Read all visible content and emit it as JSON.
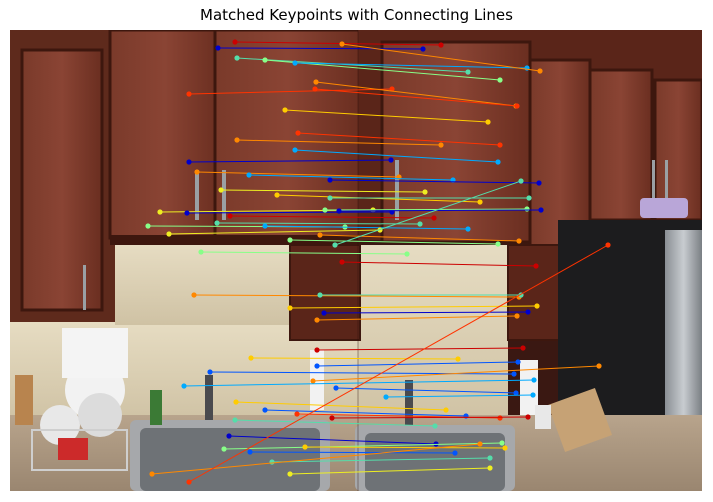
{
  "title": "Matched Keypoints with Connecting Lines",
  "image_description": "Side-by-side kitchen photos (dark wood cabinets, sink, faucets, dish rack) with colored keypoint markers connected by lines across the seam",
  "colors": {
    "background": "#ffffff",
    "match_palette": [
      "#cc0000",
      "#ff3300",
      "#ff8800",
      "#ffcc00",
      "#eeee22",
      "#88ff88",
      "#55ddaa",
      "#00aaff",
      "#0055ff",
      "#0000cc"
    ]
  },
  "matches": [
    {
      "a": [
        235,
        42
      ],
      "b": [
        441,
        45
      ],
      "c": "#cc0000"
    },
    {
      "a": [
        218,
        48
      ],
      "b": [
        423,
        49
      ],
      "c": "#0000cc"
    },
    {
      "a": [
        237,
        58
      ],
      "b": [
        468,
        72
      ],
      "c": "#55ddaa"
    },
    {
      "a": [
        265,
        60
      ],
      "b": [
        500,
        80
      ],
      "c": "#88ff88"
    },
    {
      "a": [
        295,
        63
      ],
      "b": [
        527,
        68
      ],
      "c": "#00aaff"
    },
    {
      "a": [
        342,
        44
      ],
      "b": [
        540,
        71
      ],
      "c": "#ff8800"
    },
    {
      "a": [
        189,
        94
      ],
      "b": [
        392,
        89
      ],
      "c": "#ff3300"
    },
    {
      "a": [
        316,
        82
      ],
      "b": [
        516,
        106
      ],
      "c": "#ff8800"
    },
    {
      "a": [
        315,
        89
      ],
      "b": [
        517,
        106
      ],
      "c": "#ff3300"
    },
    {
      "a": [
        285,
        110
      ],
      "b": [
        488,
        122
      ],
      "c": "#ffcc00"
    },
    {
      "a": [
        298,
        133
      ],
      "b": [
        500,
        145
      ],
      "c": "#ff3300"
    },
    {
      "a": [
        237,
        140
      ],
      "b": [
        441,
        145
      ],
      "c": "#ff8800"
    },
    {
      "a": [
        295,
        150
      ],
      "b": [
        498,
        162
      ],
      "c": "#00aaff"
    },
    {
      "a": [
        189,
        162
      ],
      "b": [
        391,
        160
      ],
      "c": "#0000cc"
    },
    {
      "a": [
        197,
        172
      ],
      "b": [
        399,
        177
      ],
      "c": "#ff8800"
    },
    {
      "a": [
        249,
        175
      ],
      "b": [
        453,
        180
      ],
      "c": "#00aaff"
    },
    {
      "a": [
        330,
        180
      ],
      "b": [
        539,
        183
      ],
      "c": "#0000cc"
    },
    {
      "a": [
        221,
        190
      ],
      "b": [
        425,
        192
      ],
      "c": "#eeee22"
    },
    {
      "a": [
        277,
        195
      ],
      "b": [
        480,
        202
      ],
      "c": "#ffcc00"
    },
    {
      "a": [
        330,
        198
      ],
      "b": [
        529,
        198
      ],
      "c": "#55ddaa"
    },
    {
      "a": [
        160,
        212
      ],
      "b": [
        373,
        210
      ],
      "c": "#eeee22"
    },
    {
      "a": [
        187,
        213
      ],
      "b": [
        392,
        212
      ],
      "c": "#0000cc"
    },
    {
      "a": [
        230,
        216
      ],
      "b": [
        434,
        218
      ],
      "c": "#cc0000"
    },
    {
      "a": [
        325,
        210
      ],
      "b": [
        527,
        209
      ],
      "c": "#88ff88"
    },
    {
      "a": [
        148,
        226
      ],
      "b": [
        345,
        227
      ],
      "c": "#88ff88"
    },
    {
      "a": [
        217,
        223
      ],
      "b": [
        420,
        224
      ],
      "c": "#55ddaa"
    },
    {
      "a": [
        265,
        226
      ],
      "b": [
        468,
        229
      ],
      "c": "#00aaff"
    },
    {
      "a": [
        339,
        211
      ],
      "b": [
        541,
        210
      ],
      "c": "#0000cc"
    },
    {
      "a": [
        169,
        234
      ],
      "b": [
        380,
        230
      ],
      "c": "#eeee22"
    },
    {
      "a": [
        290,
        240
      ],
      "b": [
        498,
        244
      ],
      "c": "#88ff88"
    },
    {
      "a": [
        320,
        235
      ],
      "b": [
        519,
        241
      ],
      "c": "#ff8800"
    },
    {
      "a": [
        335,
        245
      ],
      "b": [
        521,
        181
      ],
      "c": "#55ddaa"
    },
    {
      "a": [
        201,
        252
      ],
      "b": [
        407,
        254
      ],
      "c": "#88ff88"
    },
    {
      "a": [
        342,
        262
      ],
      "b": [
        536,
        266
      ],
      "c": "#cc0000"
    },
    {
      "a": [
        194,
        295
      ],
      "b": [
        519,
        297
      ],
      "c": "#ff8800"
    },
    {
      "a": [
        320,
        295
      ],
      "b": [
        521,
        295
      ],
      "c": "#55ddaa"
    },
    {
      "a": [
        290,
        308
      ],
      "b": [
        537,
        306
      ],
      "c": "#ffcc00"
    },
    {
      "a": [
        324,
        313
      ],
      "b": [
        528,
        312
      ],
      "c": "#0000cc"
    },
    {
      "a": [
        317,
        320
      ],
      "b": [
        517,
        316
      ],
      "c": "#ff8800"
    },
    {
      "a": [
        317,
        350
      ],
      "b": [
        523,
        348
      ],
      "c": "#cc0000"
    },
    {
      "a": [
        251,
        358
      ],
      "b": [
        458,
        359
      ],
      "c": "#ffcc00"
    },
    {
      "a": [
        317,
        366
      ],
      "b": [
        518,
        362
      ],
      "c": "#0055ff"
    },
    {
      "a": [
        210,
        372
      ],
      "b": [
        514,
        374
      ],
      "c": "#0055ff"
    },
    {
      "a": [
        313,
        381
      ],
      "b": [
        599,
        366
      ],
      "c": "#ff8800"
    },
    {
      "a": [
        184,
        386
      ],
      "b": [
        534,
        380
      ],
      "c": "#00aaff"
    },
    {
      "a": [
        336,
        388
      ],
      "b": [
        516,
        393
      ],
      "c": "#0055ff"
    },
    {
      "a": [
        386,
        397
      ],
      "b": [
        533,
        395
      ],
      "c": "#00aaff"
    },
    {
      "a": [
        236,
        402
      ],
      "b": [
        446,
        410
      ],
      "c": "#ffcc00"
    },
    {
      "a": [
        235,
        420
      ],
      "b": [
        435,
        426
      ],
      "c": "#55ddaa"
    },
    {
      "a": [
        265,
        410
      ],
      "b": [
        466,
        416
      ],
      "c": "#0055ff"
    },
    {
      "a": [
        297,
        414
      ],
      "b": [
        500,
        418
      ],
      "c": "#ff3300"
    },
    {
      "a": [
        332,
        418
      ],
      "b": [
        528,
        417
      ],
      "c": "#cc0000"
    },
    {
      "a": [
        229,
        436
      ],
      "b": [
        436,
        444
      ],
      "c": "#0000cc"
    },
    {
      "a": [
        224,
        449
      ],
      "b": [
        502,
        443
      ],
      "c": "#88ff88"
    },
    {
      "a": [
        250,
        452
      ],
      "b": [
        455,
        453
      ],
      "c": "#0055ff"
    },
    {
      "a": [
        305,
        447
      ],
      "b": [
        505,
        448
      ],
      "c": "#ffcc00"
    },
    {
      "a": [
        272,
        462
      ],
      "b": [
        490,
        458
      ],
      "c": "#55ddaa"
    },
    {
      "a": [
        290,
        474
      ],
      "b": [
        490,
        468
      ],
      "c": "#eeee22"
    },
    {
      "a": [
        152,
        474
      ],
      "b": [
        480,
        444
      ],
      "c": "#ff8800"
    },
    {
      "a": [
        189,
        482
      ],
      "b": [
        608,
        245
      ],
      "c": "#ff3300"
    }
  ]
}
